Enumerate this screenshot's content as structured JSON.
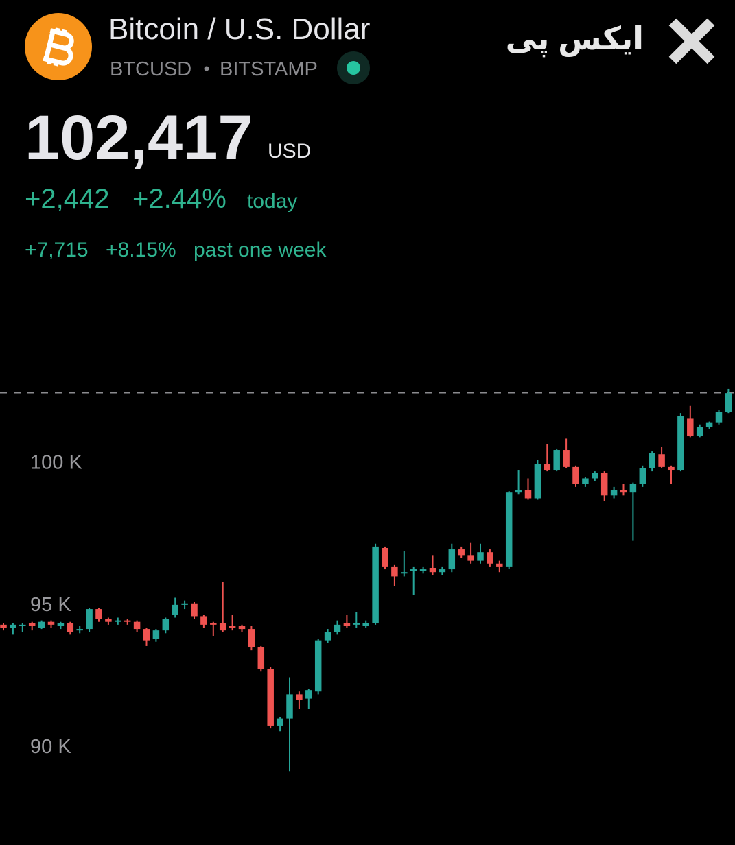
{
  "header": {
    "title": "Bitcoin / U.S. Dollar",
    "symbol": "BTCUSD",
    "exchange": "BITSTAMP",
    "price": "102,417",
    "currency": "USD",
    "change_today": "+2,442",
    "change_today_pct": "+2.44%",
    "today_label": "today",
    "change_week": "+7,715",
    "change_week_pct": "+8.15%",
    "week_label": "past one week",
    "brand": "ایکس پی"
  },
  "chart_data": {
    "type": "candlestick",
    "up_color": "#26a69a",
    "down_color": "#ef5350",
    "ylim": [
      86500,
      103200
    ],
    "yticks": [
      {
        "value": 90000,
        "label": "90 K"
      },
      {
        "value": 95000,
        "label": "95 K"
      },
      {
        "value": 100000,
        "label": "100 K"
      }
    ],
    "last_price": 102417,
    "ohlc": [
      [
        94250,
        94300,
        94050,
        94150
      ],
      [
        94150,
        94300,
        93900,
        94250
      ],
      [
        94200,
        94300,
        94000,
        94250
      ],
      [
        94300,
        94350,
        94050,
        94200
      ],
      [
        94150,
        94400,
        94100,
        94350
      ],
      [
        94350,
        94400,
        94150,
        94250
      ],
      [
        94200,
        94350,
        94100,
        94300
      ],
      [
        94300,
        94350,
        93900,
        94000
      ],
      [
        94050,
        94200,
        93950,
        94100
      ],
      [
        94100,
        94850,
        94000,
        94800
      ],
      [
        94800,
        94850,
        94350,
        94450
      ],
      [
        94450,
        94500,
        94250,
        94350
      ],
      [
        94350,
        94500,
        94250,
        94400
      ],
      [
        94400,
        94450,
        94250,
        94350
      ],
      [
        94350,
        94400,
        94000,
        94100
      ],
      [
        94100,
        94150,
        93500,
        93700
      ],
      [
        93750,
        94100,
        93650,
        94050
      ],
      [
        94050,
        94500,
        93950,
        94450
      ],
      [
        94600,
        95200,
        94500,
        94950
      ],
      [
        94950,
        95100,
        94800,
        95000
      ],
      [
        95000,
        95050,
        94450,
        94550
      ],
      [
        94550,
        94600,
        94150,
        94250
      ],
      [
        94300,
        94350,
        93850,
        94250
      ],
      [
        94300,
        95750,
        94000,
        94050
      ],
      [
        94200,
        94600,
        94050,
        94150
      ],
      [
        94200,
        94250,
        94000,
        94100
      ],
      [
        94100,
        94200,
        93350,
        93450
      ],
      [
        93450,
        93500,
        92600,
        92700
      ],
      [
        92700,
        92750,
        90600,
        90700
      ],
      [
        90700,
        91000,
        90500,
        90950
      ],
      [
        90950,
        92400,
        89100,
        91800
      ],
      [
        91800,
        91900,
        91300,
        91600
      ],
      [
        91650,
        92000,
        91300,
        91950
      ],
      [
        91900,
        93750,
        91800,
        93700
      ],
      [
        93700,
        94100,
        93600,
        94000
      ],
      [
        94000,
        94400,
        93900,
        94250
      ],
      [
        94300,
        94600,
        94150,
        94200
      ],
      [
        94250,
        94700,
        94150,
        94300
      ],
      [
        94200,
        94400,
        94150,
        94300
      ],
      [
        94300,
        97100,
        94250,
        97000
      ],
      [
        96950,
        97000,
        96200,
        96300
      ],
      [
        96300,
        96350,
        95600,
        95950
      ],
      [
        96050,
        96850,
        95950,
        96100
      ],
      [
        96150,
        96300,
        95300,
        96200
      ],
      [
        96150,
        96300,
        96050,
        96200
      ],
      [
        96250,
        96700,
        96000,
        96100
      ],
      [
        96100,
        96300,
        96000,
        96200
      ],
      [
        96200,
        97100,
        96100,
        96900
      ],
      [
        96900,
        97000,
        96600,
        96700
      ],
      [
        96700,
        97150,
        96400,
        96500
      ],
      [
        96500,
        97100,
        96400,
        96800
      ],
      [
        96800,
        96900,
        96300,
        96400
      ],
      [
        96400,
        96500,
        96100,
        96300
      ],
      [
        96300,
        98950,
        96200,
        98900
      ],
      [
        98900,
        99700,
        98850,
        99000
      ],
      [
        99000,
        99400,
        98650,
        98700
      ],
      [
        98700,
        100050,
        98650,
        99900
      ],
      [
        99900,
        100600,
        99650,
        99700
      ],
      [
        99700,
        100450,
        99650,
        100400
      ],
      [
        100400,
        100800,
        99750,
        99800
      ],
      [
        99800,
        99850,
        99100,
        99200
      ],
      [
        99200,
        99450,
        99100,
        99400
      ],
      [
        99400,
        99650,
        99300,
        99600
      ],
      [
        99600,
        99650,
        98600,
        98800
      ],
      [
        98800,
        99100,
        98700,
        99000
      ],
      [
        99000,
        99200,
        98800,
        98900
      ],
      [
        98900,
        99250,
        97200,
        99200
      ],
      [
        99200,
        99850,
        99100,
        99750
      ],
      [
        99750,
        100350,
        99650,
        100300
      ],
      [
        100250,
        100500,
        99750,
        99800
      ],
      [
        99800,
        99850,
        99200,
        99700
      ],
      [
        99700,
        101700,
        99650,
        101600
      ],
      [
        101500,
        101950,
        100850,
        100900
      ],
      [
        100900,
        101300,
        100850,
        101200
      ],
      [
        101200,
        101400,
        101150,
        101350
      ],
      [
        101350,
        101800,
        101300,
        101750
      ],
      [
        101750,
        102550,
        101700,
        102400
      ]
    ]
  }
}
